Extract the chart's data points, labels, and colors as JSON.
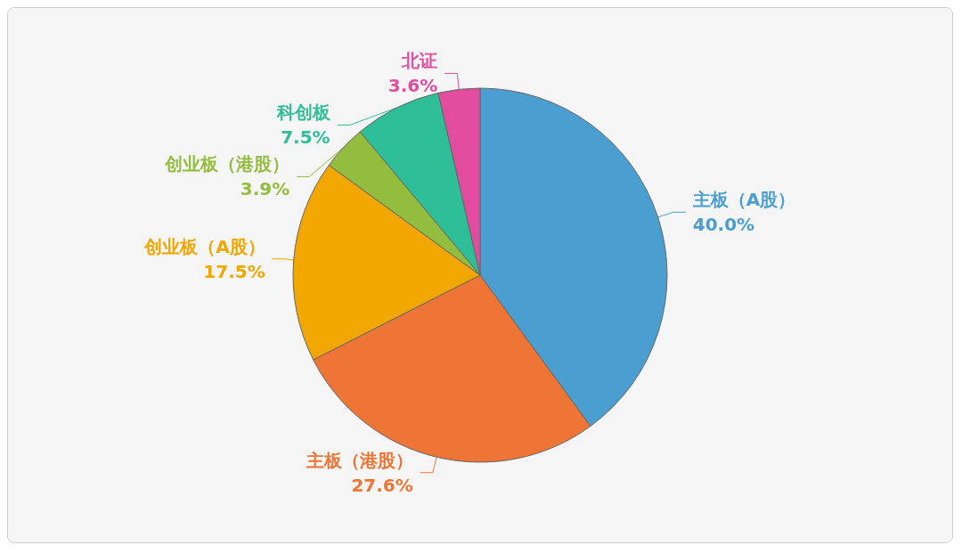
{
  "chart_data": {
    "type": "pie",
    "categories": [
      "主板（A股）",
      "主板（港股）",
      "创业板（A股）",
      "创业板（港股）",
      "科创板",
      "北证"
    ],
    "values": [
      40.0,
      27.6,
      17.5,
      3.9,
      7.5,
      3.6
    ],
    "value_labels": [
      "40.0%",
      "27.6%",
      "17.5%",
      "3.9%",
      "7.5%",
      "3.6%"
    ],
    "colors": [
      "#4a9fd0",
      "#ee7535",
      "#f2a600",
      "#93bd3e",
      "#2fbf98",
      "#e24c9e"
    ],
    "legend": false
  }
}
